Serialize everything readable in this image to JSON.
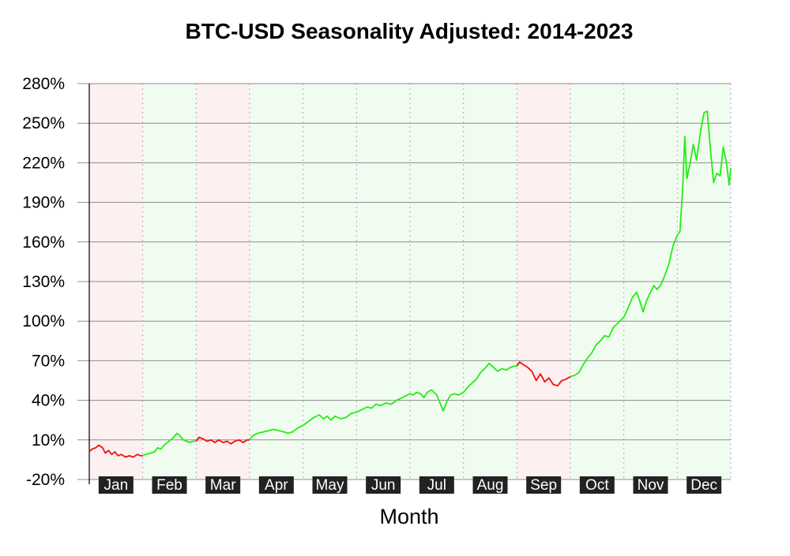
{
  "chart_data": {
    "type": "line",
    "title": "BTC-USD Seasonality Adjusted: 2014-2023",
    "xlabel": "Month",
    "ylabel": "",
    "ylim": [
      -20,
      280
    ],
    "yticks": [
      -20,
      10,
      40,
      70,
      100,
      130,
      160,
      190,
      220,
      250,
      280
    ],
    "ytick_labels": [
      "-20%",
      "10%",
      "40%",
      "70%",
      "100%",
      "130%",
      "160%",
      "190%",
      "220%",
      "250%",
      "280%"
    ],
    "grid": true,
    "legend": "none",
    "colors": {
      "up": "#22ee11",
      "down": "#ee1111",
      "up_band": "#f1fcf0",
      "down_band": "#fdf0f0",
      "label_box": "#222222"
    },
    "months": [
      {
        "label": "Jan",
        "direction": "down"
      },
      {
        "label": "Feb",
        "direction": "up"
      },
      {
        "label": "Mar",
        "direction": "down"
      },
      {
        "label": "Apr",
        "direction": "up"
      },
      {
        "label": "May",
        "direction": "up"
      },
      {
        "label": "Jun",
        "direction": "up"
      },
      {
        "label": "Jul",
        "direction": "up"
      },
      {
        "label": "Aug",
        "direction": "up"
      },
      {
        "label": "Sep",
        "direction": "down"
      },
      {
        "label": "Oct",
        "direction": "up"
      },
      {
        "label": "Nov",
        "direction": "up"
      },
      {
        "label": "Dec",
        "direction": "up"
      }
    ],
    "series": [
      {
        "values": [
          {
            "x": 0.0,
            "y": 1
          },
          {
            "x": 0.05,
            "y": 3
          },
          {
            "x": 0.12,
            "y": 4
          },
          {
            "x": 0.18,
            "y": 6
          },
          {
            "x": 0.25,
            "y": 4
          },
          {
            "x": 0.3,
            "y": 0
          },
          {
            "x": 0.36,
            "y": 2
          },
          {
            "x": 0.42,
            "y": -1
          },
          {
            "x": 0.48,
            "y": 1
          },
          {
            "x": 0.54,
            "y": -2
          },
          {
            "x": 0.6,
            "y": -1
          },
          {
            "x": 0.68,
            "y": -3
          },
          {
            "x": 0.75,
            "y": -2
          },
          {
            "x": 0.82,
            "y": -3
          },
          {
            "x": 0.9,
            "y": -1
          },
          {
            "x": 0.96,
            "y": -2
          },
          {
            "x": 1.0,
            "y": -2
          },
          {
            "x": 1.05,
            "y": -1
          },
          {
            "x": 1.15,
            "y": 0
          },
          {
            "x": 1.22,
            "y": 1
          },
          {
            "x": 1.28,
            "y": 4
          },
          {
            "x": 1.34,
            "y": 3
          },
          {
            "x": 1.4,
            "y": 6
          },
          {
            "x": 1.46,
            "y": 8
          },
          {
            "x": 1.52,
            "y": 10
          },
          {
            "x": 1.58,
            "y": 12
          },
          {
            "x": 1.64,
            "y": 15
          },
          {
            "x": 1.7,
            "y": 13
          },
          {
            "x": 1.76,
            "y": 10
          },
          {
            "x": 1.82,
            "y": 9
          },
          {
            "x": 1.88,
            "y": 8
          },
          {
            "x": 1.94,
            "y": 9
          },
          {
            "x": 2.0,
            "y": 9
          },
          {
            "x": 2.05,
            "y": 12
          },
          {
            "x": 2.12,
            "y": 11
          },
          {
            "x": 2.2,
            "y": 9
          },
          {
            "x": 2.28,
            "y": 10
          },
          {
            "x": 2.35,
            "y": 8
          },
          {
            "x": 2.42,
            "y": 10
          },
          {
            "x": 2.5,
            "y": 8
          },
          {
            "x": 2.58,
            "y": 9
          },
          {
            "x": 2.65,
            "y": 7
          },
          {
            "x": 2.72,
            "y": 9
          },
          {
            "x": 2.8,
            "y": 10
          },
          {
            "x": 2.88,
            "y": 8
          },
          {
            "x": 2.95,
            "y": 10
          },
          {
            "x": 3.0,
            "y": 10
          },
          {
            "x": 3.05,
            "y": 13
          },
          {
            "x": 3.15,
            "y": 15
          },
          {
            "x": 3.25,
            "y": 16
          },
          {
            "x": 3.35,
            "y": 17
          },
          {
            "x": 3.45,
            "y": 18
          },
          {
            "x": 3.55,
            "y": 17
          },
          {
            "x": 3.65,
            "y": 16
          },
          {
            "x": 3.72,
            "y": 15
          },
          {
            "x": 3.8,
            "y": 16
          },
          {
            "x": 3.9,
            "y": 19
          },
          {
            "x": 4.0,
            "y": 21
          },
          {
            "x": 4.1,
            "y": 24
          },
          {
            "x": 4.2,
            "y": 27
          },
          {
            "x": 4.3,
            "y": 29
          },
          {
            "x": 4.38,
            "y": 26
          },
          {
            "x": 4.45,
            "y": 28
          },
          {
            "x": 4.52,
            "y": 25
          },
          {
            "x": 4.6,
            "y": 28
          },
          {
            "x": 4.7,
            "y": 26
          },
          {
            "x": 4.8,
            "y": 27
          },
          {
            "x": 4.9,
            "y": 30
          },
          {
            "x": 5.0,
            "y": 31
          },
          {
            "x": 5.1,
            "y": 33
          },
          {
            "x": 5.2,
            "y": 35
          },
          {
            "x": 5.28,
            "y": 34
          },
          {
            "x": 5.36,
            "y": 37
          },
          {
            "x": 5.45,
            "y": 36
          },
          {
            "x": 5.55,
            "y": 38
          },
          {
            "x": 5.65,
            "y": 37
          },
          {
            "x": 5.75,
            "y": 40
          },
          {
            "x": 5.85,
            "y": 42
          },
          {
            "x": 5.95,
            "y": 44
          },
          {
            "x": 6.0,
            "y": 45
          },
          {
            "x": 6.05,
            "y": 44
          },
          {
            "x": 6.12,
            "y": 46
          },
          {
            "x": 6.2,
            "y": 45
          },
          {
            "x": 6.26,
            "y": 42
          },
          {
            "x": 6.32,
            "y": 46
          },
          {
            "x": 6.4,
            "y": 48
          },
          {
            "x": 6.5,
            "y": 44
          },
          {
            "x": 6.56,
            "y": 38
          },
          {
            "x": 6.62,
            "y": 32
          },
          {
            "x": 6.7,
            "y": 40
          },
          {
            "x": 6.76,
            "y": 44
          },
          {
            "x": 6.84,
            "y": 45
          },
          {
            "x": 6.9,
            "y": 44
          },
          {
            "x": 7.0,
            "y": 46
          },
          {
            "x": 7.08,
            "y": 50
          },
          {
            "x": 7.16,
            "y": 53
          },
          {
            "x": 7.24,
            "y": 56
          },
          {
            "x": 7.32,
            "y": 61
          },
          {
            "x": 7.4,
            "y": 64
          },
          {
            "x": 7.48,
            "y": 68
          },
          {
            "x": 7.56,
            "y": 65
          },
          {
            "x": 7.64,
            "y": 62
          },
          {
            "x": 7.72,
            "y": 64
          },
          {
            "x": 7.8,
            "y": 63
          },
          {
            "x": 7.88,
            "y": 65
          },
          {
            "x": 7.95,
            "y": 66
          },
          {
            "x": 8.0,
            "y": 66
          },
          {
            "x": 8.05,
            "y": 69
          },
          {
            "x": 8.12,
            "y": 67
          },
          {
            "x": 8.2,
            "y": 65
          },
          {
            "x": 8.28,
            "y": 62
          },
          {
            "x": 8.36,
            "y": 55
          },
          {
            "x": 8.44,
            "y": 60
          },
          {
            "x": 8.52,
            "y": 54
          },
          {
            "x": 8.6,
            "y": 57
          },
          {
            "x": 8.68,
            "y": 52
          },
          {
            "x": 8.76,
            "y": 51
          },
          {
            "x": 8.84,
            "y": 55
          },
          {
            "x": 8.92,
            "y": 56
          },
          {
            "x": 9.0,
            "y": 58
          },
          {
            "x": 9.08,
            "y": 59
          },
          {
            "x": 9.16,
            "y": 61
          },
          {
            "x": 9.24,
            "y": 67
          },
          {
            "x": 9.32,
            "y": 72
          },
          {
            "x": 9.4,
            "y": 76
          },
          {
            "x": 9.48,
            "y": 82
          },
          {
            "x": 9.56,
            "y": 85
          },
          {
            "x": 9.64,
            "y": 89
          },
          {
            "x": 9.72,
            "y": 88
          },
          {
            "x": 9.8,
            "y": 95
          },
          {
            "x": 9.9,
            "y": 99
          },
          {
            "x": 10.0,
            "y": 103
          },
          {
            "x": 10.08,
            "y": 110
          },
          {
            "x": 10.16,
            "y": 118
          },
          {
            "x": 10.24,
            "y": 122
          },
          {
            "x": 10.3,
            "y": 115
          },
          {
            "x": 10.36,
            "y": 107
          },
          {
            "x": 10.42,
            "y": 115
          },
          {
            "x": 10.5,
            "y": 122
          },
          {
            "x": 10.56,
            "y": 127
          },
          {
            "x": 10.62,
            "y": 124
          },
          {
            "x": 10.7,
            "y": 128
          },
          {
            "x": 10.76,
            "y": 134
          },
          {
            "x": 10.84,
            "y": 143
          },
          {
            "x": 10.92,
            "y": 157
          },
          {
            "x": 11.0,
            "y": 165
          },
          {
            "x": 11.05,
            "y": 168
          },
          {
            "x": 11.1,
            "y": 200
          },
          {
            "x": 11.14,
            "y": 240
          },
          {
            "x": 11.18,
            "y": 208
          },
          {
            "x": 11.24,
            "y": 220
          },
          {
            "x": 11.3,
            "y": 234
          },
          {
            "x": 11.36,
            "y": 222
          },
          {
            "x": 11.44,
            "y": 245
          },
          {
            "x": 11.5,
            "y": 258
          },
          {
            "x": 11.56,
            "y": 259
          },
          {
            "x": 11.62,
            "y": 230
          },
          {
            "x": 11.68,
            "y": 205
          },
          {
            "x": 11.74,
            "y": 212
          },
          {
            "x": 11.8,
            "y": 210
          },
          {
            "x": 11.86,
            "y": 232
          },
          {
            "x": 11.92,
            "y": 220
          },
          {
            "x": 11.97,
            "y": 203
          },
          {
            "x": 12.0,
            "y": 216
          }
        ]
      }
    ]
  }
}
